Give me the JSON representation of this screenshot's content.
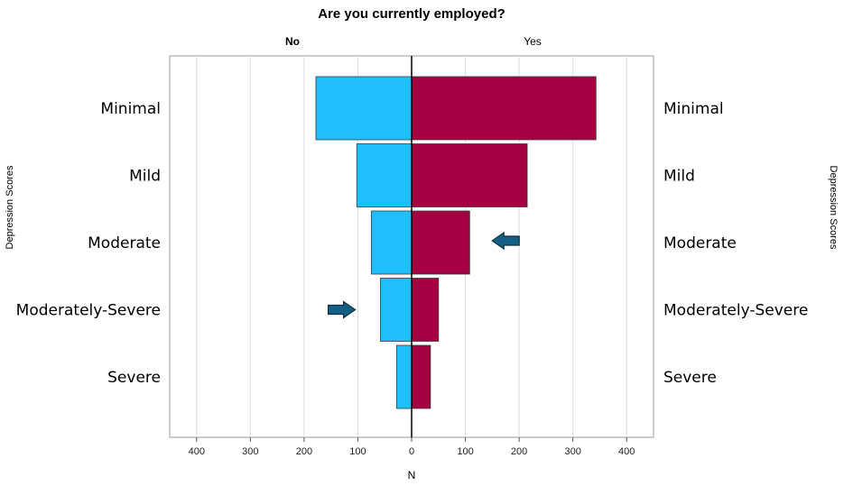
{
  "chart_data": {
    "type": "bar",
    "orientation": "population-pyramid",
    "title": "Are you currently employed?",
    "panels": [
      "No",
      "Yes"
    ],
    "categories": [
      "Minimal",
      "Mild",
      "Moderate",
      "Moderately-Severe",
      "Severe"
    ],
    "series": [
      {
        "name": "No",
        "color": "#1FBFFF",
        "values": [
          178,
          102,
          75,
          58,
          28
        ]
      },
      {
        "name": "Yes",
        "color": "#A50042",
        "values": [
          343,
          215,
          108,
          50,
          35
        ]
      }
    ],
    "xlabel": "N",
    "ylabel_left": "Depression Scores",
    "ylabel_right": "Depression Scores",
    "xlim": [
      -450,
      450
    ],
    "xticks": [
      {
        "value": -400,
        "label": "400"
      },
      {
        "value": -300,
        "label": "300"
      },
      {
        "value": -200,
        "label": "200"
      },
      {
        "value": -100,
        "label": "100"
      },
      {
        "value": 0,
        "label": "0"
      },
      {
        "value": 100,
        "label": "100"
      },
      {
        "value": 200,
        "label": "200"
      },
      {
        "value": 300,
        "label": "300"
      },
      {
        "value": 400,
        "label": "400"
      }
    ],
    "grid": "vertical",
    "annotations": [
      {
        "type": "arrow",
        "direction": "left",
        "category": "Moderate",
        "x": 175,
        "color": "#155F86"
      },
      {
        "type": "arrow",
        "direction": "right",
        "category": "Moderately-Severe",
        "x": -130,
        "color": "#155F86"
      }
    ]
  }
}
